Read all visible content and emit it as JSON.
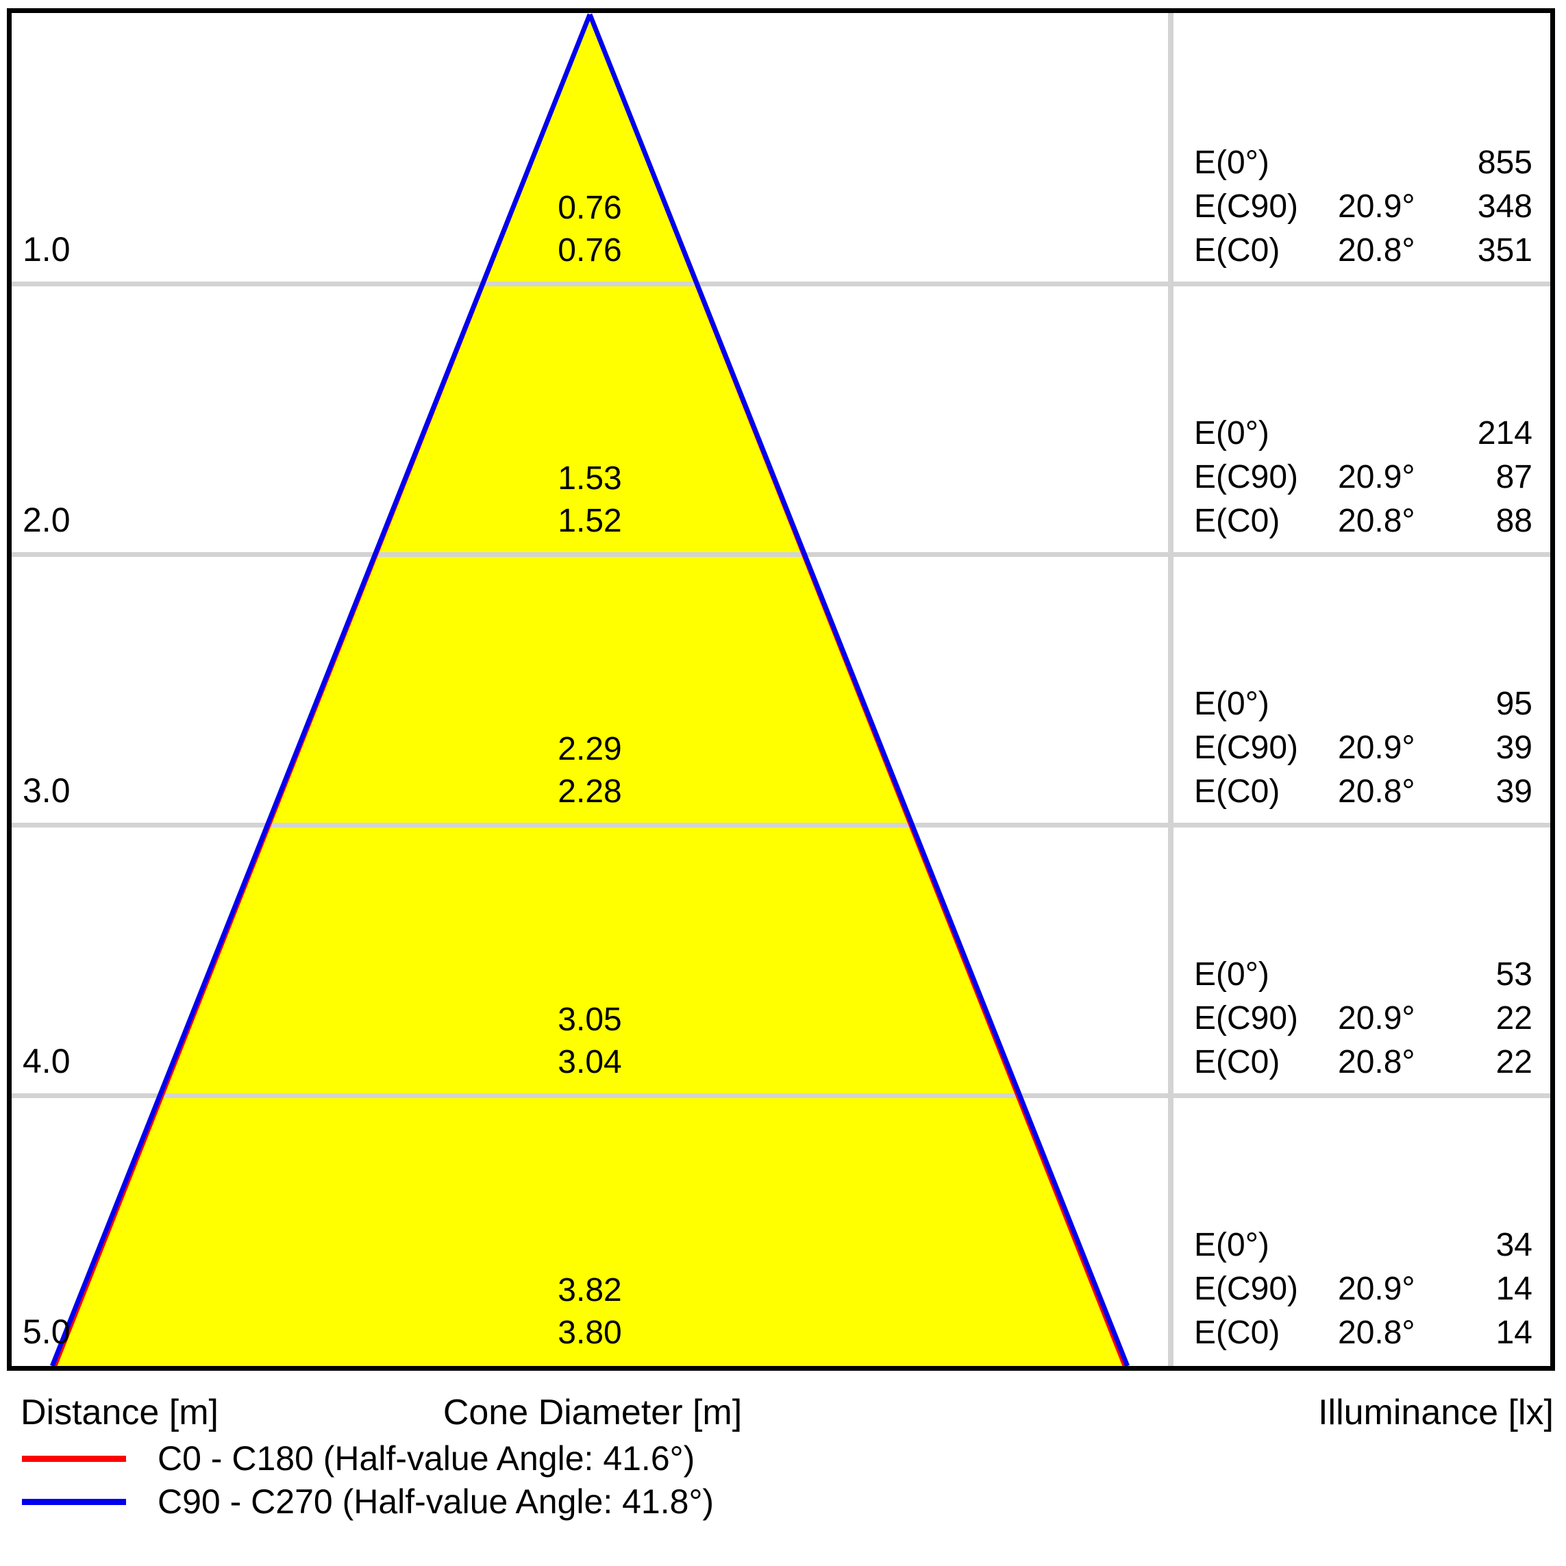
{
  "chart_data": {
    "type": "cone-diagram",
    "description": "Luminaire light cone diagram: cone diameter and illuminance vs distance",
    "distance_axis_m": [
      1.0,
      2.0,
      3.0,
      4.0,
      5.0
    ],
    "c0_half_angle_deg": 20.8,
    "c90_half_angle_deg": 20.9,
    "e_labels": {
      "e0": "E(0°)",
      "ec90": "E(C90)",
      "ec0": "E(C0)"
    },
    "rows": [
      {
        "distance": "1.0",
        "d_c90": "0.76",
        "d_c0": "0.76",
        "e0": "855",
        "a90": "20.9°",
        "e90": "348",
        "a0": "20.8°",
        "ec0": "351"
      },
      {
        "distance": "2.0",
        "d_c90": "1.53",
        "d_c0": "1.52",
        "e0": "214",
        "a90": "20.9°",
        "e90": "87",
        "a0": "20.8°",
        "ec0": "88"
      },
      {
        "distance": "3.0",
        "d_c90": "2.29",
        "d_c0": "2.28",
        "e0": "95",
        "a90": "20.9°",
        "e90": "39",
        "a0": "20.8°",
        "ec0": "39"
      },
      {
        "distance": "4.0",
        "d_c90": "3.05",
        "d_c0": "3.04",
        "e0": "53",
        "a90": "20.9°",
        "e90": "22",
        "a0": "20.8°",
        "ec0": "22"
      },
      {
        "distance": "5.0",
        "d_c90": "3.82",
        "d_c0": "3.80",
        "e0": "34",
        "a90": "20.9°",
        "e90": "14",
        "a0": "20.8°",
        "ec0": "14"
      }
    ]
  },
  "footer": {
    "distance": "Distance [m]",
    "cone_diameter": "Cone Diameter [m]",
    "illuminance": "Illuminance [lx]"
  },
  "legend": [
    {
      "label": "C0 - C180 (Half-value Angle: 41.6°)",
      "color": "#ff0000"
    },
    {
      "label": "C90 - C270 (Half-value Angle: 41.8°)",
      "color": "#0000ee"
    }
  ],
  "colors": {
    "cone_fill": "#ffff00",
    "c0_line": "#ff0000",
    "c90_line": "#0000ee",
    "grid": "#d3d3d3",
    "border": "#000000"
  }
}
